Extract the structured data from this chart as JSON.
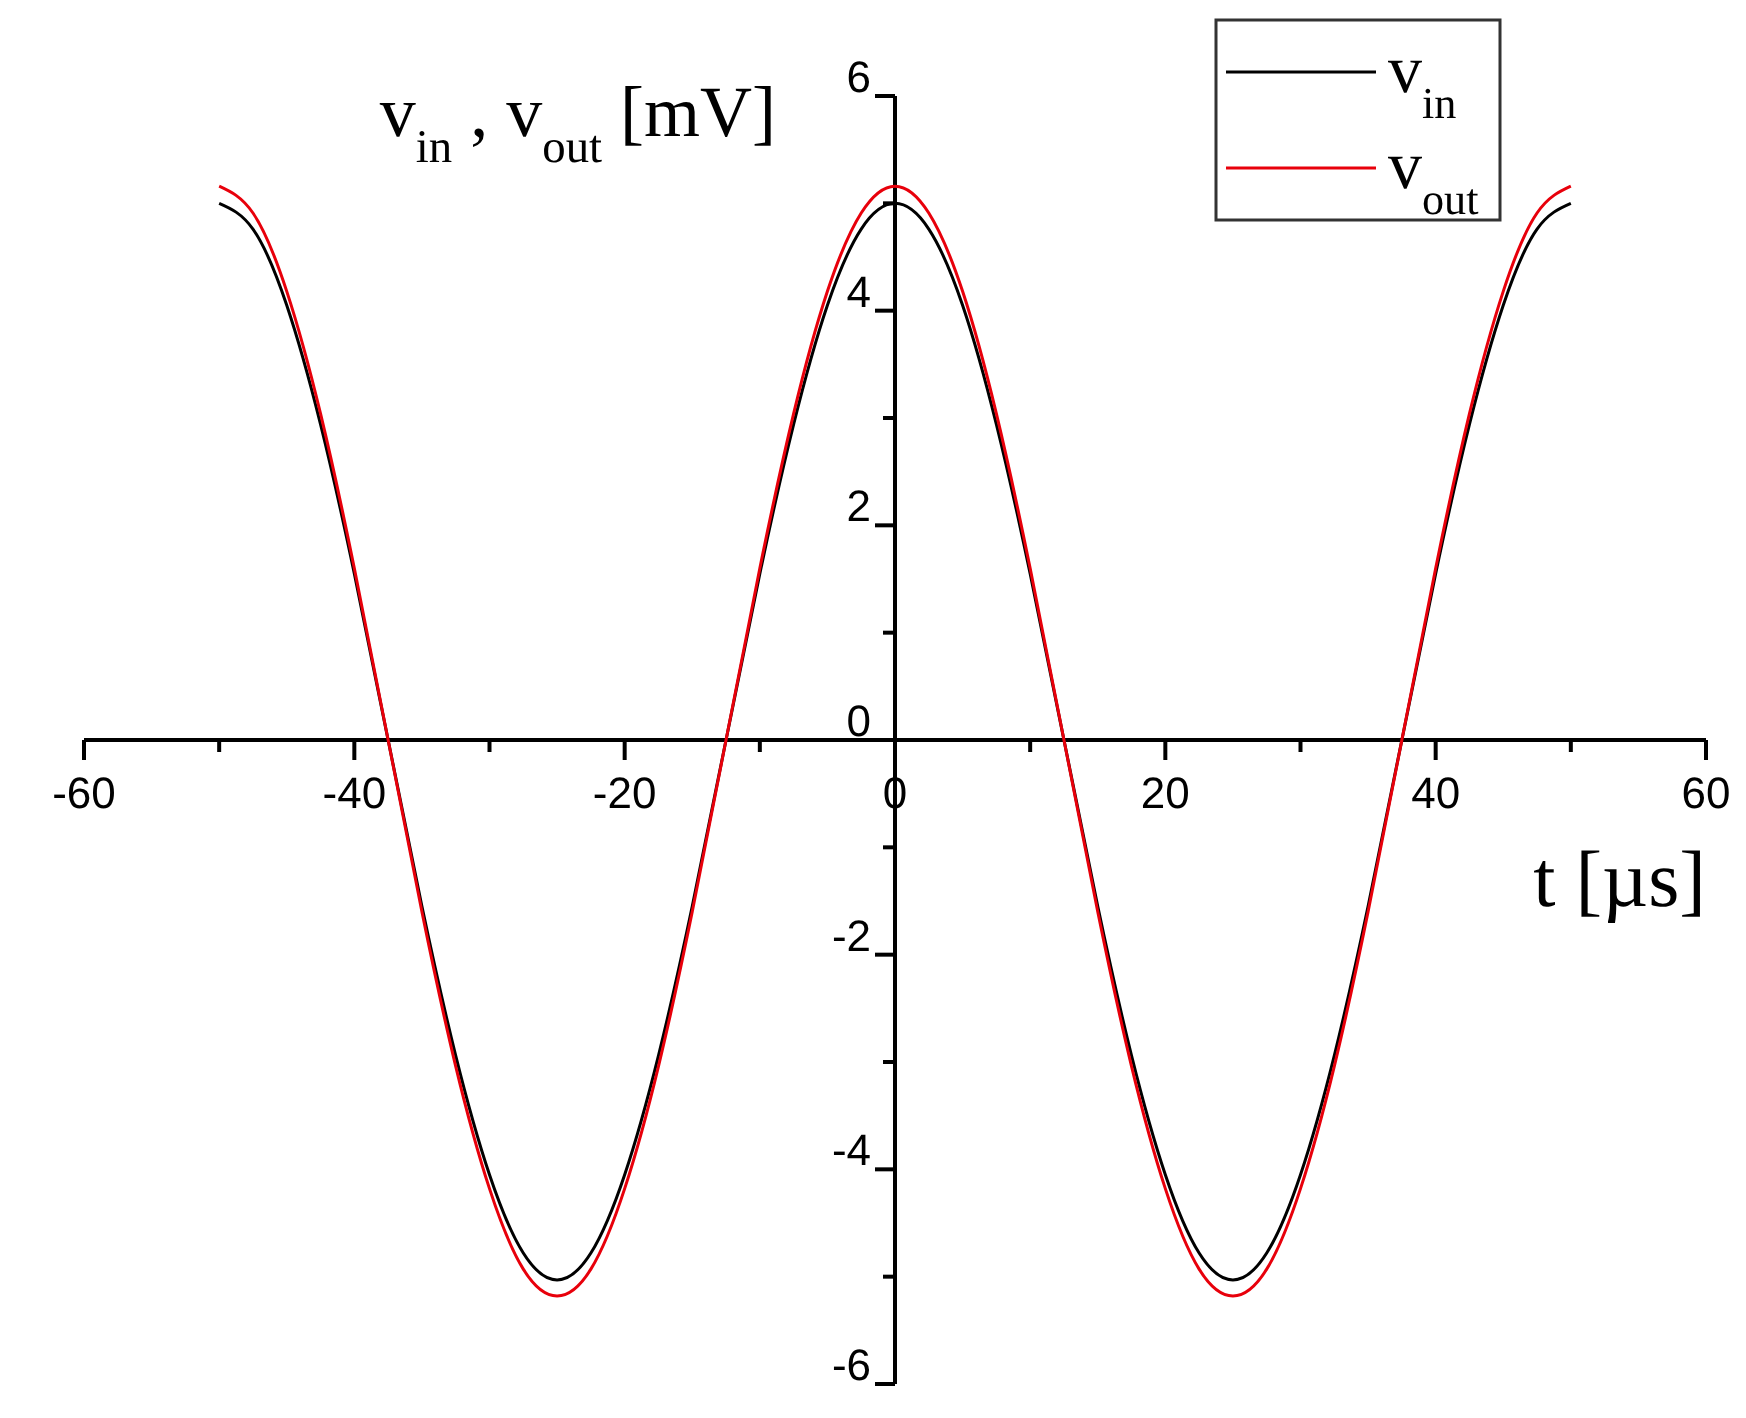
{
  "chart_data": {
    "type": "line",
    "xlabel": "t [µs]",
    "ylabel": "v$_{in}$, v$_{out}$ [mV]",
    "x": [
      -50,
      -47.5,
      -45,
      -42.5,
      -40,
      -37.5,
      -35,
      -32.5,
      -30,
      -27.5,
      -25,
      -22.5,
      -20,
      -17.5,
      -15,
      -12.5,
      -10,
      -7.5,
      -5,
      -2.5,
      0,
      2.5,
      5,
      7.5,
      10,
      12.5,
      15,
      17.5,
      20,
      22.5,
      25,
      27.5,
      30,
      32.5,
      35,
      37.5,
      40,
      42.5,
      45,
      47.5,
      50
    ],
    "series": [
      {
        "name": "v$_{in}$",
        "color": "#000000",
        "values": [
          5.0,
          4.76,
          4.05,
          2.94,
          1.55,
          0,
          -1.55,
          -2.94,
          -4.05,
          -4.78,
          -5.03,
          -4.78,
          -4.05,
          -2.94,
          -1.55,
          0,
          1.55,
          2.94,
          4.05,
          4.76,
          5.0,
          4.76,
          4.05,
          2.94,
          1.55,
          0,
          -1.55,
          -2.94,
          -4.05,
          -4.78,
          -5.03,
          -4.78,
          -4.05,
          -2.94,
          -1.55,
          0,
          1.55,
          2.94,
          4.05,
          4.76,
          5.0
        ]
      },
      {
        "name": "v$_{out}$",
        "color": "#e8000b",
        "values": [
          5.16,
          4.91,
          4.18,
          3.04,
          1.6,
          0,
          -1.6,
          -3.04,
          -4.18,
          -4.93,
          -5.18,
          -4.93,
          -4.18,
          -3.04,
          -1.6,
          0,
          1.6,
          3.04,
          4.18,
          4.91,
          5.16,
          4.91,
          4.18,
          3.04,
          1.6,
          0,
          -1.6,
          -3.04,
          -4.18,
          -4.93,
          -5.18,
          -4.93,
          -4.18,
          -3.04,
          -1.6,
          0,
          1.6,
          3.04,
          4.18,
          4.91,
          5.16
        ]
      }
    ],
    "xlim": [
      -60,
      60
    ],
    "ylim": [
      -6,
      6
    ],
    "xticks": [
      -60,
      {
        "value": -50,
        "label": null
      },
      -40,
      {
        "value": -30,
        "label": null
      },
      -20,
      {
        "value": -10,
        "label": null
      },
      0,
      {
        "value": 10,
        "label": null
      },
      20,
      {
        "value": 30,
        "label": null
      },
      40,
      {
        "value": 50,
        "label": null
      },
      60
    ],
    "yticks": [
      -6,
      {
        "value": -5,
        "label": null
      },
      -4,
      {
        "value": -3,
        "label": null
      },
      -2,
      {
        "value": -1,
        "label": null
      },
      0,
      {
        "value": 1,
        "label": null
      },
      2,
      {
        "value": 3,
        "label": null
      },
      4,
      {
        "value": 5,
        "label": null
      },
      6
    ],
    "grid": false,
    "legend": "top right",
    "line_style": "solid"
  }
}
